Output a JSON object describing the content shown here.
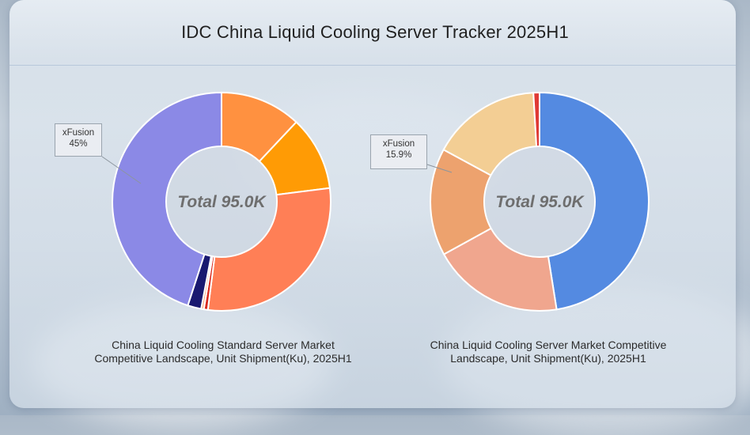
{
  "title": "IDC China Liquid Cooling Server Tracker 2025H1",
  "chart_data": [
    {
      "type": "pie",
      "donut": true,
      "center_label": "Total 95.0K",
      "caption_lines": [
        "China Liquid Cooling Standard Server Market",
        "Competitive Landscape, Unit Shipment(Ku), 2025H1"
      ],
      "annotation": {
        "name": "xFusion",
        "value": "45%"
      },
      "slices": [
        {
          "value": 12.0,
          "color": "#FF9140"
        },
        {
          "value": 11.0,
          "color": "#FF9B05"
        },
        {
          "value": 29.0,
          "color": "#FF7F56"
        },
        {
          "value": 0.6,
          "color": "#D92A1E"
        },
        {
          "value": 0.4,
          "color": "#F9AB84"
        },
        {
          "value": 2.0,
          "color": "#191970"
        },
        {
          "value": 45.0,
          "color": "#8B89E6"
        }
      ]
    },
    {
      "type": "pie",
      "donut": true,
      "center_label": "Total 95.0K",
      "caption_lines": [
        "China Liquid Cooling Server Market Competitive",
        "Landscape, Unit Shipment(Ku), 2025H1"
      ],
      "annotation": {
        "name": "xFusion",
        "value": "15.9%"
      },
      "slices": [
        {
          "value": 47.5,
          "color": "#548AE1"
        },
        {
          "value": 19.5,
          "color": "#F0A68E"
        },
        {
          "value": 15.9,
          "color": "#EDA26E"
        },
        {
          "value": 16.2,
          "color": "#F3CE94"
        },
        {
          "value": 0.9,
          "color": "#E03A34"
        }
      ]
    }
  ]
}
